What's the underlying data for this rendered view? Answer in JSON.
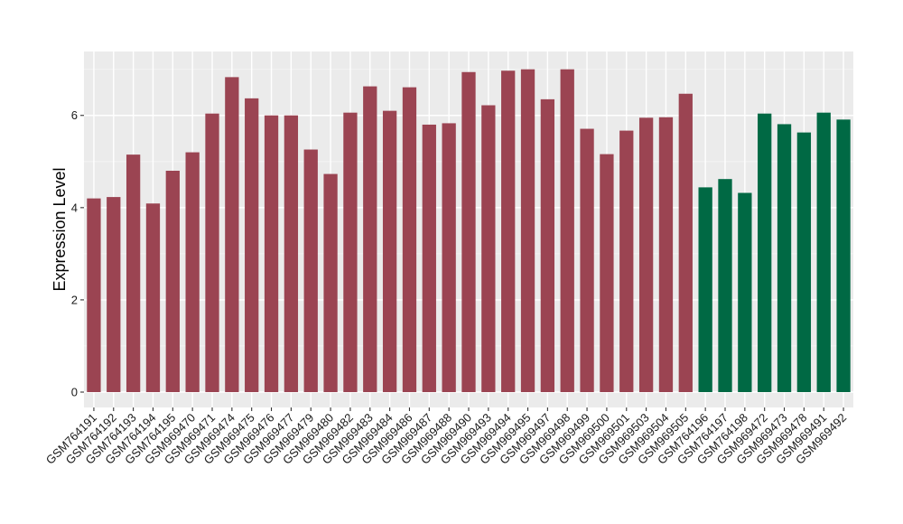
{
  "chart_data": {
    "type": "bar",
    "title": "",
    "xlabel": "",
    "ylabel": "Expression Level",
    "ylim": [
      0,
      7.3
    ],
    "yticks": [
      0,
      2,
      4,
      6
    ],
    "grid": true,
    "legend": "none",
    "categories": [
      "GSM764191",
      "GSM764192",
      "GSM764193",
      "GSM764194",
      "GSM764195",
      "GSM969470",
      "GSM969471",
      "GSM969474",
      "GSM969475",
      "GSM969476",
      "GSM969477",
      "GSM969479",
      "GSM969480",
      "GSM969482",
      "GSM969483",
      "GSM969484",
      "GSM969486",
      "GSM969487",
      "GSM969488",
      "GSM969490",
      "GSM969493",
      "GSM969494",
      "GSM969495",
      "GSM969497",
      "GSM969498",
      "GSM969499",
      "GSM969500",
      "GSM969501",
      "GSM969503",
      "GSM969504",
      "GSM969505",
      "GSM764196",
      "GSM764197",
      "GSM764198",
      "GSM969472",
      "GSM969473",
      "GSM969478",
      "GSM969491",
      "GSM969492"
    ],
    "values": [
      4.2,
      4.23,
      5.15,
      4.09,
      4.8,
      5.2,
      6.04,
      6.83,
      6.37,
      6.0,
      6.0,
      5.26,
      4.73,
      6.06,
      6.63,
      6.1,
      6.61,
      5.8,
      5.83,
      6.94,
      6.22,
      6.97,
      7.0,
      6.35,
      7.0,
      5.71,
      5.16,
      5.67,
      5.95,
      5.96,
      6.47,
      4.44,
      4.62,
      4.32,
      6.04,
      5.81,
      5.63,
      6.06,
      5.91
    ],
    "groups": [
      0,
      0,
      0,
      0,
      0,
      0,
      0,
      0,
      0,
      0,
      0,
      0,
      0,
      0,
      0,
      0,
      0,
      0,
      0,
      0,
      0,
      0,
      0,
      0,
      0,
      0,
      0,
      0,
      0,
      0,
      0,
      1,
      1,
      1,
      1,
      1,
      1,
      1,
      1
    ],
    "colors": {
      "group_0": "#9b4452",
      "group_1": "#006944",
      "panel_background": "#ebebeb",
      "grid_major": "#ffffff",
      "grid_minor": "#f5f5f5",
      "tick": "#333333"
    }
  }
}
